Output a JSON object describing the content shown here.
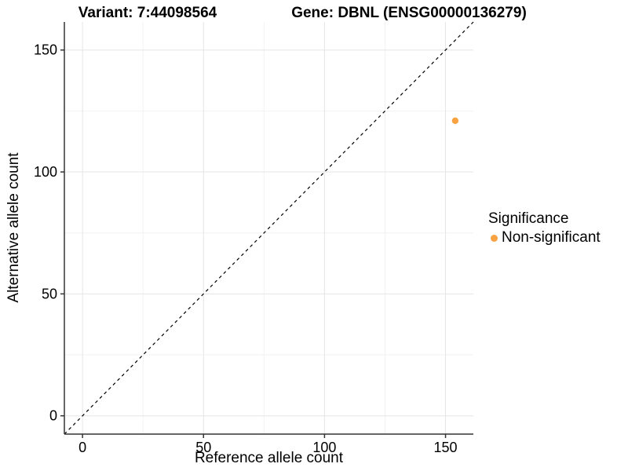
{
  "chart_data": {
    "type": "scatter",
    "title_left": "Variant: 7:44098564",
    "title_right": "Gene: DBNL (ENSG00000136279)",
    "xlabel": "Reference allele count",
    "ylabel": "Alternative allele count",
    "xlim": [
      -7.5,
      161.5
    ],
    "ylim": [
      -7.5,
      161.5
    ],
    "x_major_ticks": [
      0,
      50,
      100,
      150
    ],
    "y_major_ticks": [
      0,
      50,
      100,
      150
    ],
    "x_minor_ticks": [
      25,
      75,
      125
    ],
    "y_minor_ticks": [
      25,
      75,
      125
    ],
    "grid": "major and minor gridlines on white background",
    "reference_line": {
      "kind": "identity y = x",
      "style": "dashed",
      "color": "#000000"
    },
    "series": [
      {
        "name": "Non-significant",
        "color": "#F9A242",
        "points": [
          {
            "x": 154,
            "y": 121
          }
        ]
      }
    ],
    "legend": {
      "title": "Significance",
      "position": "right",
      "items": [
        {
          "label": "Non-significant",
          "color": "#F9A242"
        }
      ]
    },
    "colors": {
      "major_grid": "#e5e5e5",
      "minor_grid": "#f2f2f2",
      "axis_line": "#333333",
      "text": "#000000",
      "background": "#ffffff"
    }
  }
}
